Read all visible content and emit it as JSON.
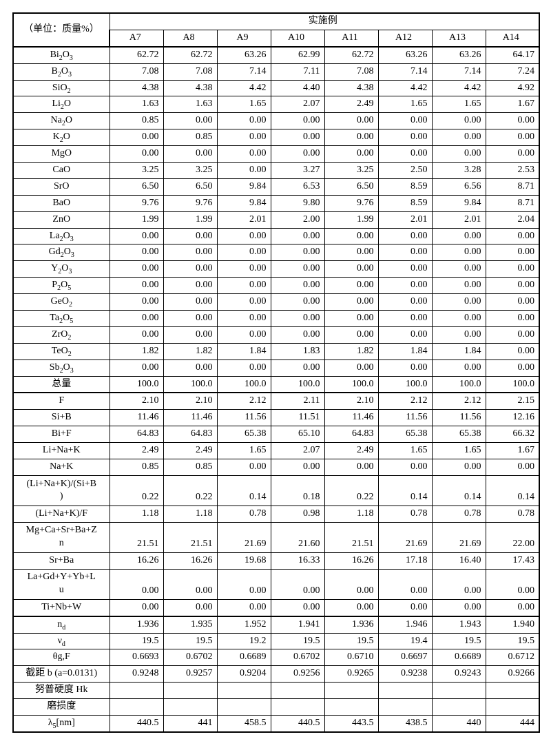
{
  "unit_label": "（单位：质量%）",
  "group_header": "实施例",
  "columns": [
    "A7",
    "A8",
    "A9",
    "A10",
    "A11",
    "A12",
    "A13",
    "A14"
  ],
  "sections": [
    {
      "rows": [
        {
          "label_html": "Bi<sub>2</sub>O<sub>3</sub>",
          "v": [
            "62.72",
            "62.72",
            "63.26",
            "62.99",
            "62.72",
            "63.26",
            "63.26",
            "64.17"
          ]
        },
        {
          "label_html": "B<sub>2</sub>O<sub>3</sub>",
          "v": [
            "7.08",
            "7.08",
            "7.14",
            "7.11",
            "7.08",
            "7.14",
            "7.14",
            "7.24"
          ]
        },
        {
          "label_html": "SiO<sub>2</sub>",
          "v": [
            "4.38",
            "4.38",
            "4.42",
            "4.40",
            "4.38",
            "4.42",
            "4.42",
            "4.92"
          ]
        },
        {
          "label_html": "Li<sub>2</sub>O",
          "v": [
            "1.63",
            "1.63",
            "1.65",
            "2.07",
            "2.49",
            "1.65",
            "1.65",
            "1.67"
          ]
        },
        {
          "label_html": "Na<sub>2</sub>O",
          "v": [
            "0.85",
            "0.00",
            "0.00",
            "0.00",
            "0.00",
            "0.00",
            "0.00",
            "0.00"
          ]
        },
        {
          "label_html": "K<sub>2</sub>O",
          "v": [
            "0.00",
            "0.85",
            "0.00",
            "0.00",
            "0.00",
            "0.00",
            "0.00",
            "0.00"
          ]
        },
        {
          "label_html": "MgO",
          "v": [
            "0.00",
            "0.00",
            "0.00",
            "0.00",
            "0.00",
            "0.00",
            "0.00",
            "0.00"
          ]
        },
        {
          "label_html": "CaO",
          "v": [
            "3.25",
            "3.25",
            "0.00",
            "3.27",
            "3.25",
            "2.50",
            "3.28",
            "2.53"
          ]
        },
        {
          "label_html": "SrO",
          "v": [
            "6.50",
            "6.50",
            "9.84",
            "6.53",
            "6.50",
            "8.59",
            "6.56",
            "8.71"
          ]
        },
        {
          "label_html": "BaO",
          "v": [
            "9.76",
            "9.76",
            "9.84",
            "9.80",
            "9.76",
            "8.59",
            "9.84",
            "8.71"
          ]
        },
        {
          "label_html": "ZnO",
          "v": [
            "1.99",
            "1.99",
            "2.01",
            "2.00",
            "1.99",
            "2.01",
            "2.01",
            "2.04"
          ]
        },
        {
          "label_html": "La<sub>2</sub>O<sub>3</sub>",
          "v": [
            "0.00",
            "0.00",
            "0.00",
            "0.00",
            "0.00",
            "0.00",
            "0.00",
            "0.00"
          ]
        },
        {
          "label_html": "Gd<sub>2</sub>O<sub>3</sub>",
          "v": [
            "0.00",
            "0.00",
            "0.00",
            "0.00",
            "0.00",
            "0.00",
            "0.00",
            "0.00"
          ]
        },
        {
          "label_html": "Y<sub>2</sub>O<sub>3</sub>",
          "v": [
            "0.00",
            "0.00",
            "0.00",
            "0.00",
            "0.00",
            "0.00",
            "0.00",
            "0.00"
          ]
        },
        {
          "label_html": "P<sub>2</sub>O<sub>5</sub>",
          "v": [
            "0.00",
            "0.00",
            "0.00",
            "0.00",
            "0.00",
            "0.00",
            "0.00",
            "0.00"
          ]
        },
        {
          "label_html": "GeO<sub>2</sub>",
          "v": [
            "0.00",
            "0.00",
            "0.00",
            "0.00",
            "0.00",
            "0.00",
            "0.00",
            "0.00"
          ]
        },
        {
          "label_html": "Ta<sub>2</sub>O<sub>5</sub>",
          "v": [
            "0.00",
            "0.00",
            "0.00",
            "0.00",
            "0.00",
            "0.00",
            "0.00",
            "0.00"
          ]
        },
        {
          "label_html": "ZrO<sub>2</sub>",
          "v": [
            "0.00",
            "0.00",
            "0.00",
            "0.00",
            "0.00",
            "0.00",
            "0.00",
            "0.00"
          ]
        },
        {
          "label_html": "TeO<sub>2</sub>",
          "v": [
            "1.82",
            "1.82",
            "1.84",
            "1.83",
            "1.82",
            "1.84",
            "1.84",
            "0.00"
          ]
        },
        {
          "label_html": "Sb<sub>2</sub>O<sub>3</sub>",
          "v": [
            "0.00",
            "0.00",
            "0.00",
            "0.00",
            "0.00",
            "0.00",
            "0.00",
            "0.00"
          ]
        },
        {
          "label_html": "总量",
          "v": [
            "100.0",
            "100.0",
            "100.0",
            "100.0",
            "100.0",
            "100.0",
            "100.0",
            "100.0"
          ]
        }
      ]
    },
    {
      "rows": [
        {
          "label_html": "F",
          "v": [
            "2.10",
            "2.10",
            "2.12",
            "2.11",
            "2.10",
            "2.12",
            "2.12",
            "2.15"
          ]
        },
        {
          "label_html": "Si+B",
          "v": [
            "11.46",
            "11.46",
            "11.56",
            "11.51",
            "11.46",
            "11.56",
            "11.56",
            "12.16"
          ]
        },
        {
          "label_html": "Bi+F",
          "v": [
            "64.83",
            "64.83",
            "65.38",
            "65.10",
            "64.83",
            "65.38",
            "65.38",
            "66.32"
          ]
        },
        {
          "label_html": "Li+Na+K",
          "v": [
            "2.49",
            "2.49",
            "1.65",
            "2.07",
            "2.49",
            "1.65",
            "1.65",
            "1.67"
          ]
        },
        {
          "label_html": "Na+K",
          "v": [
            "0.85",
            "0.85",
            "0.00",
            "0.00",
            "0.00",
            "0.00",
            "0.00",
            "0.00"
          ]
        },
        {
          "label_html": "(Li+Na+K)/(Si+B<br>)",
          "tall": true,
          "v": [
            "0.22",
            "0.22",
            "0.14",
            "0.18",
            "0.22",
            "0.14",
            "0.14",
            "0.14"
          ]
        },
        {
          "label_html": "(Li+Na+K)/F",
          "v": [
            "1.18",
            "1.18",
            "0.78",
            "0.98",
            "1.18",
            "0.78",
            "0.78",
            "0.78"
          ]
        },
        {
          "label_html": "Mg+Ca+Sr+Ba+Z<br>n",
          "tall": true,
          "v": [
            "21.51",
            "21.51",
            "21.69",
            "21.60",
            "21.51",
            "21.69",
            "21.69",
            "22.00"
          ]
        },
        {
          "label_html": "Sr+Ba",
          "v": [
            "16.26",
            "16.26",
            "19.68",
            "16.33",
            "16.26",
            "17.18",
            "16.40",
            "17.43"
          ]
        },
        {
          "label_html": "La+Gd+Y+Yb+L<br>u",
          "tall": true,
          "v": [
            "0.00",
            "0.00",
            "0.00",
            "0.00",
            "0.00",
            "0.00",
            "0.00",
            "0.00"
          ]
        },
        {
          "label_html": "Ti+Nb+W",
          "v": [
            "0.00",
            "0.00",
            "0.00",
            "0.00",
            "0.00",
            "0.00",
            "0.00",
            "0.00"
          ]
        }
      ]
    },
    {
      "rows": [
        {
          "label_html": "n<sub>d</sub>",
          "v": [
            "1.936",
            "1.935",
            "1.952",
            "1.941",
            "1.936",
            "1.946",
            "1.943",
            "1.940"
          ]
        },
        {
          "label_html": "ν<sub>d</sub>",
          "v": [
            "19.5",
            "19.5",
            "19.2",
            "19.5",
            "19.5",
            "19.4",
            "19.5",
            "19.5"
          ]
        },
        {
          "label_html": "θg,F",
          "v": [
            "0.6693",
            "0.6702",
            "0.6689",
            "0.6702",
            "0.6710",
            "0.6697",
            "0.6689",
            "0.6712"
          ]
        },
        {
          "label_html": "截距 b (a=0.0131)",
          "v": [
            "0.9248",
            "0.9257",
            "0.9204",
            "0.9256",
            "0.9265",
            "0.9238",
            "0.9243",
            "0.9266"
          ]
        },
        {
          "label_html": "努普硬度 Hk",
          "v": [
            "",
            "",
            "",
            "",
            "",
            "",
            "",
            ""
          ]
        },
        {
          "label_html": "磨损度",
          "v": [
            "",
            "",
            "",
            "",
            "",
            "",
            "",
            ""
          ]
        },
        {
          "label_html": "λ<sub>5</sub>[nm]",
          "v": [
            "440.5",
            "441",
            "458.5",
            "440.5",
            "443.5",
            "438.5",
            "440",
            "444"
          ]
        }
      ]
    }
  ]
}
